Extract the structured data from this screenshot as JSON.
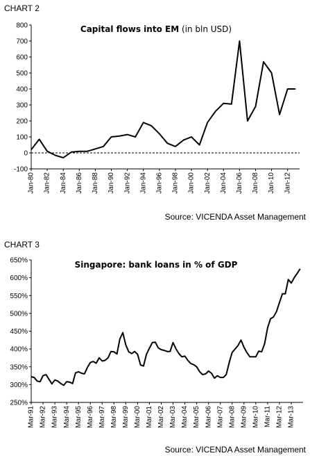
{
  "chart_data": [
    {
      "type": "line",
      "label": "CHART 2",
      "title": "Capital flows into EM",
      "title_suffix": "(in bln USD)",
      "source": "Source: VICENDA Asset Management",
      "ylim": [
        -100,
        800
      ],
      "yticks": [
        -100,
        0,
        100,
        200,
        300,
        400,
        500,
        600,
        700,
        800
      ],
      "xlim": [
        1980,
        2013.5
      ],
      "xticks": [
        "Jan-80",
        "Jan-82",
        "Jan-84",
        "Jan-86",
        "Jan-88",
        "Jan-90",
        "Jan-92",
        "Jan-94",
        "Jan-96",
        "Jan-98",
        "Jan-00",
        "Jan-02",
        "Jan-04",
        "Jan-06",
        "Jan-08",
        "Jan-10",
        "Jan-12"
      ],
      "zero_line": "dashed",
      "grid": false,
      "series": [
        {
          "x": [
            1980,
            1981,
            1982,
            1983,
            1984,
            1985,
            1986,
            1987,
            1988,
            1989,
            1990,
            1991,
            1992,
            1993,
            1994,
            1995,
            1996,
            1997,
            1998,
            1999,
            2000,
            2001,
            2002,
            2003,
            2004,
            2005,
            2006,
            2007,
            2008,
            2009,
            2010,
            2011,
            2012,
            2013
          ],
          "values": [
            20,
            85,
            10,
            -15,
            -30,
            5,
            10,
            10,
            25,
            40,
            100,
            105,
            115,
            100,
            190,
            170,
            120,
            60,
            40,
            80,
            100,
            50,
            190,
            260,
            310,
            305,
            700,
            200,
            290,
            570,
            500,
            240,
            400,
            400
          ]
        }
      ]
    },
    {
      "type": "line",
      "label": "CHART 3",
      "title": "Singapore: bank loans in % of GDP",
      "source": "Source: VICENDA Asset Management",
      "ylim": [
        250,
        650
      ],
      "yticks": [
        "250%",
        "300%",
        "350%",
        "400%",
        "450%",
        "500%",
        "550%",
        "600%",
        "650%"
      ],
      "xlim": [
        1991,
        2014
      ],
      "xticks": [
        "Mar-91",
        "Mar-92",
        "Mar-93",
        "Mar-94",
        "Mar-95",
        "Mar-96",
        "Mar-97",
        "Mar-98",
        "Mar-99",
        "Mar-00",
        "Mar-01",
        "Mar-02",
        "Mar-03",
        "Mar-04",
        "Mar-05",
        "Mar-06",
        "Mar-07",
        "Mar-08",
        "Mar-09",
        "Mar-10",
        "Mar-11",
        "Mar-12",
        "Mar-13"
      ],
      "grid": false,
      "series": [
        {
          "x": [
            1991.0,
            1991.25,
            1991.5,
            1991.75,
            1992.0,
            1992.25,
            1992.5,
            1992.75,
            1993.0,
            1993.25,
            1993.5,
            1993.75,
            1994.0,
            1994.25,
            1994.5,
            1994.75,
            1995.0,
            1995.25,
            1995.5,
            1995.75,
            1996.0,
            1996.25,
            1996.5,
            1996.75,
            1997.0,
            1997.25,
            1997.5,
            1997.75,
            1998.0,
            1998.25,
            1998.5,
            1998.75,
            1999.0,
            1999.25,
            1999.5,
            1999.75,
            2000.0,
            2000.25,
            2000.5,
            2000.75,
            2001.0,
            2001.25,
            2001.5,
            2001.75,
            2002.0,
            2002.25,
            2002.5,
            2002.75,
            2003.0,
            2003.25,
            2003.5,
            2003.75,
            2004.0,
            2004.25,
            2004.5,
            2004.75,
            2005.0,
            2005.25,
            2005.5,
            2005.75,
            2006.0,
            2006.25,
            2006.5,
            2006.75,
            2007.0,
            2007.25,
            2007.5,
            2007.75,
            2008.0,
            2008.25,
            2008.5,
            2008.75,
            2009.0,
            2009.25,
            2009.5,
            2009.75,
            2010.0,
            2010.25,
            2010.5,
            2010.75,
            2011.0,
            2011.25,
            2011.5,
            2011.75,
            2012.0,
            2012.25,
            2012.5,
            2012.75,
            2013.0,
            2013.25,
            2013.5,
            2013.75
          ],
          "values": [
            322,
            320,
            310,
            308,
            325,
            328,
            315,
            302,
            313,
            310,
            303,
            298,
            308,
            307,
            303,
            333,
            336,
            332,
            330,
            348,
            362,
            365,
            360,
            375,
            366,
            368,
            375,
            393,
            392,
            386,
            428,
            446,
            412,
            392,
            387,
            393,
            385,
            355,
            352,
            385,
            402,
            418,
            419,
            403,
            398,
            396,
            393,
            393,
            418,
            400,
            387,
            378,
            380,
            368,
            359,
            356,
            350,
            336,
            328,
            330,
            338,
            332,
            318,
            325,
            320,
            320,
            328,
            362,
            390,
            400,
            410,
            425,
            405,
            390,
            378,
            378,
            378,
            394,
            392,
            415,
            460,
            485,
            490,
            505,
            530,
            555,
            555,
            595,
            585,
            600,
            612,
            625
          ]
        }
      ]
    }
  ]
}
